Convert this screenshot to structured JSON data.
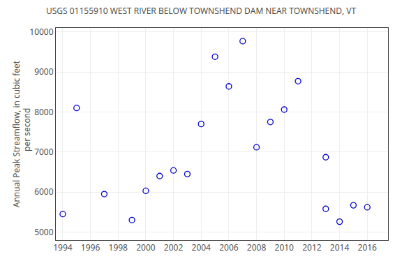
{
  "chart_data": {
    "type": "scatter",
    "title": "USGS 01155910 WEST RIVER BELOW TOWNSHEND DAM NEAR TOWNSHEND, VT",
    "ylabel": "Annual Peak Streamflow, in cubic feet\n    per second",
    "x": [
      1994,
      1995,
      1997,
      1999,
      2000,
      2001,
      2002,
      2003,
      2004,
      2005,
      2006,
      2007,
      2008,
      2009,
      2010,
      2011,
      2013,
      2013,
      2014,
      2015,
      2016
    ],
    "values": [
      5450,
      8100,
      5950,
      5300,
      6030,
      6400,
      6540,
      6450,
      7700,
      9380,
      8640,
      9770,
      7120,
      7750,
      8060,
      8770,
      6870,
      5580,
      5260,
      5670,
      5620
    ],
    "color": "#0000cd",
    "marker": "open circle",
    "xlim": [
      1993.5,
      2017.5
    ],
    "ylim": [
      4800,
      10100
    ],
    "xticks": [
      1994,
      1996,
      1998,
      2000,
      2002,
      2004,
      2006,
      2008,
      2010,
      2012,
      2014,
      2016
    ],
    "yticks": [
      5000,
      6000,
      7000,
      8000,
      9000,
      10000
    ],
    "grid": true
  }
}
